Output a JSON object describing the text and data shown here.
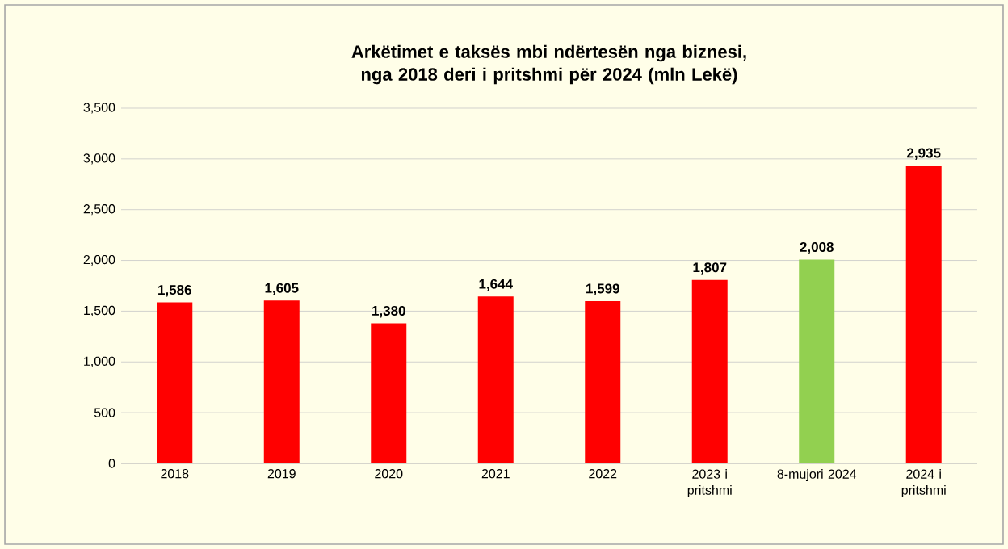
{
  "chart_data": {
    "type": "bar",
    "title": "Arkëtimet e taksës mbi ndërtesën nga biznesi, nga 2018 deri i pritshmi për 2024 (mln Lekë)",
    "categories": [
      "2018",
      "2019",
      "2020",
      "2021",
      "2022",
      "2023 i pritshmi",
      "8-mujori 2024",
      "2024 i pritshmi"
    ],
    "values": [
      1586,
      1605,
      1380,
      1644,
      1599,
      1807,
      2008,
      2935
    ],
    "value_labels": [
      "1,586",
      "1,605",
      "1,380",
      "1,644",
      "1,599",
      "1,807",
      "2,008",
      "2,935"
    ],
    "colors": [
      "#ff0000",
      "#ff0000",
      "#ff0000",
      "#ff0000",
      "#ff0000",
      "#ff0000",
      "#92d050",
      "#ff0000"
    ],
    "ylim": [
      0,
      3500
    ],
    "yticks": [
      {
        "value": 0,
        "label": "0"
      },
      {
        "value": 500,
        "label": "500"
      },
      {
        "value": 1000,
        "label": "1,000"
      },
      {
        "value": 1500,
        "label": "1,500"
      },
      {
        "value": 2000,
        "label": "2,000"
      },
      {
        "value": 2500,
        "label": "2,500"
      },
      {
        "value": 3000,
        "label": "3,000"
      },
      {
        "value": 3500,
        "label": "3,500"
      }
    ],
    "grid": "y"
  }
}
